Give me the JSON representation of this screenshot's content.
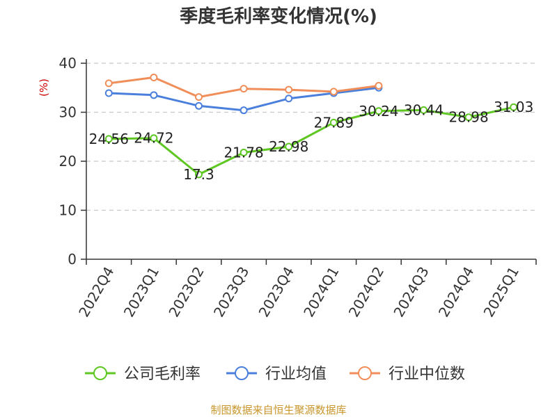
{
  "chart_data": {
    "type": "line",
    "title": "季度毛利率变化情况(%)",
    "ylabel": "(%)",
    "xlabel": "",
    "ylim": [
      0,
      40
    ],
    "yticks": [
      0,
      10,
      20,
      30,
      40
    ],
    "grid": "horizontal-dashed",
    "legend_position": "bottom",
    "categories": [
      "2022Q4",
      "2023Q1",
      "2023Q2",
      "2023Q3",
      "2023Q4",
      "2024Q1",
      "2024Q2",
      "2024Q3",
      "2024Q4",
      "2025Q1"
    ],
    "series": [
      {
        "name": "公司毛利率",
        "color": "#5ec722",
        "values": [
          24.56,
          24.72,
          17.3,
          21.78,
          22.98,
          27.89,
          30.24,
          30.44,
          28.98,
          31.03
        ],
        "labels": [
          "24.56",
          "24.72",
          "17.3",
          "21.78",
          "22.98",
          "27.89",
          "30.24",
          "30.44",
          "28.98",
          "31.03"
        ]
      },
      {
        "name": "行业均值",
        "color": "#4a7fdc",
        "values": [
          33.9,
          33.5,
          31.3,
          30.4,
          32.8,
          33.9,
          35.0,
          null,
          null,
          null
        ]
      },
      {
        "name": "行业中位数",
        "color": "#f08e5a",
        "values": [
          35.9,
          37.1,
          33.1,
          34.8,
          34.6,
          34.2,
          35.4,
          null,
          null,
          null
        ]
      }
    ]
  },
  "footer": "制图数据来自恒生聚源数据库"
}
